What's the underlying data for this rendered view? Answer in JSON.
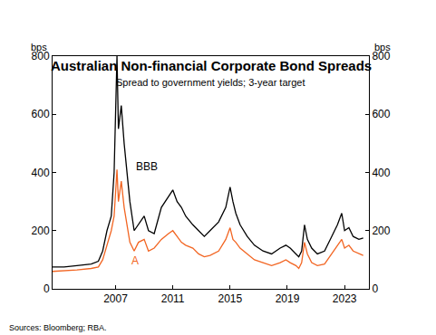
{
  "chart_data": {
    "type": "line",
    "title": "Australian Non-financial Corporate Bond Spreads",
    "subtitle": "Spread to government yields; 3-year target",
    "ylabel": "bps",
    "y2label": "bps",
    "source": "Sources: Bloomberg; RBA.",
    "x": [
      2002.6,
      2003.4,
      2004.3,
      2005.3,
      2005.8,
      2006.1,
      2006.4,
      2006.7,
      2006.9,
      2007.0,
      2007.1,
      2007.2,
      2007.4,
      2007.6,
      2007.8,
      2008.0,
      2008.3,
      2008.6,
      2009.0,
      2009.3,
      2009.7,
      2010.2,
      2010.7,
      2011.0,
      2011.3,
      2011.6,
      2011.9,
      2012.4,
      2012.8,
      2013.2,
      2013.6,
      2014.2,
      2014.7,
      2015.0,
      2015.2,
      2015.4,
      2015.7,
      2016.2,
      2016.7,
      2017.3,
      2017.9,
      2018.5,
      2018.9,
      2019.2,
      2019.6,
      2019.8,
      2020.0,
      2020.2,
      2020.4,
      2020.7,
      2021.1,
      2021.6,
      2022.1,
      2022.5,
      2022.8,
      2023.0,
      2023.3,
      2023.6,
      2024.0,
      2024.3
    ],
    "series": [
      {
        "name": "BBB",
        "color": "#000000",
        "values": [
          75,
          75,
          80,
          85,
          95,
          130,
          200,
          250,
          400,
          650,
          800,
          550,
          630,
          500,
          400,
          300,
          200,
          220,
          250,
          200,
          190,
          280,
          320,
          340,
          300,
          280,
          250,
          220,
          200,
          180,
          200,
          230,
          280,
          350,
          300,
          260,
          220,
          180,
          150,
          130,
          120,
          140,
          150,
          140,
          120,
          110,
          130,
          220,
          170,
          140,
          120,
          130,
          180,
          220,
          260,
          200,
          210,
          180,
          170,
          175
        ]
      },
      {
        "name": "A",
        "color": "#f26522",
        "values": [
          60,
          62,
          65,
          70,
          75,
          100,
          150,
          200,
          250,
          350,
          410,
          300,
          370,
          280,
          220,
          160,
          130,
          160,
          170,
          130,
          140,
          170,
          190,
          200,
          180,
          160,
          150,
          140,
          120,
          110,
          115,
          130,
          170,
          210,
          170,
          160,
          140,
          120,
          100,
          90,
          80,
          90,
          100,
          90,
          80,
          70,
          90,
          160,
          120,
          90,
          80,
          85,
          120,
          150,
          170,
          140,
          150,
          130,
          120,
          115
        ]
      }
    ],
    "annotations": [
      {
        "text": "BBB",
        "x": 2008.3,
        "y": 420,
        "color": "#000000"
      },
      {
        "text": "A",
        "x": 2008.0,
        "y": 95,
        "color": "#f26522"
      }
    ],
    "xlim": [
      2002.6,
      2024.7
    ],
    "xticks": [
      2007,
      2011,
      2015,
      2019,
      2023
    ],
    "ylim": [
      0,
      800
    ],
    "yticks": [
      0,
      200,
      400,
      600,
      800
    ],
    "y2lim": [
      0,
      800
    ],
    "y2ticks": [
      0,
      200,
      400,
      600,
      800
    ],
    "grid": false
  }
}
